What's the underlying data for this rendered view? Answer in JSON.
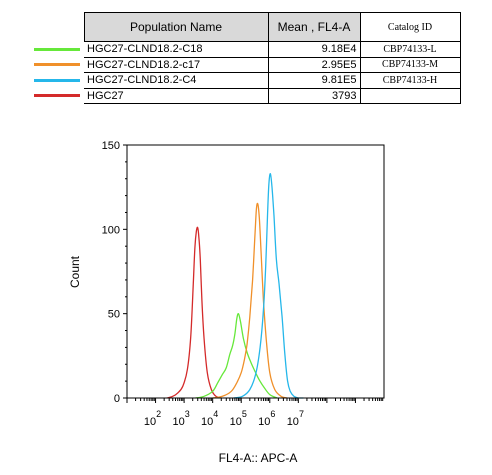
{
  "table": {
    "headers": {
      "population": "Population Name",
      "mean": "Mean , FL4-A",
      "catalog": "Catalog ID"
    },
    "rows": [
      {
        "name": "HGC27-CLND18.2-C18",
        "mean": "9.18E4",
        "catalog": "CBP74133-L",
        "color": "#66e83a"
      },
      {
        "name": "HGC27-CLND18.2-c17",
        "mean": "2.95E5",
        "catalog": "CBP74133-M",
        "color": "#f0902a"
      },
      {
        "name": "HGC27-CLND18.2-C4",
        "mean": "9.81E5",
        "catalog": "CBP74133-H",
        "color": "#25b7ea"
      },
      {
        "name": "HGC27",
        "mean": "3793",
        "catalog": "",
        "color": "#d42a2a"
      }
    ]
  },
  "chart_data": {
    "type": "line",
    "xlabel": "FL4-A:: APC-A",
    "ylabel": "Count",
    "xscale": "log",
    "xlim": [
      10,
      10000000000
    ],
    "ylim": [
      0,
      150
    ],
    "yticks": [
      0,
      50,
      100,
      150
    ],
    "xticks": [
      {
        "value": 100,
        "base": "10",
        "exp": "2"
      },
      {
        "value": 1000,
        "base": "10",
        "exp": "3"
      },
      {
        "value": 10000,
        "base": "10",
        "exp": "4"
      },
      {
        "value": 100000,
        "base": "10",
        "exp": "5"
      },
      {
        "value": 1000000,
        "base": "10",
        "exp": "6"
      },
      {
        "value": 10000000,
        "base": "10",
        "exp": "7"
      }
    ],
    "series": [
      {
        "name": "HGC27",
        "color": "#d42a2a",
        "x": [
          250,
          400,
          600,
          900,
          1300,
          1700,
          2100,
          2400,
          2700,
          3000,
          3300,
          3700,
          4200,
          5000,
          6500,
          9000,
          13000,
          20000
        ],
        "y": [
          0,
          1,
          3,
          7,
          17,
          36,
          68,
          90,
          99,
          101,
          95,
          82,
          58,
          35,
          15,
          5,
          1,
          0
        ]
      },
      {
        "name": "HGC27-CLND18.2-C18",
        "color": "#66e83a",
        "x": [
          2500,
          5000,
          10000,
          15000,
          22000,
          30000,
          40000,
          50000,
          60000,
          70000,
          80000,
          95000,
          120000,
          160000,
          220000,
          300000,
          420000,
          650000,
          1000000,
          1800000
        ],
        "y": [
          0,
          1,
          4,
          9,
          14,
          18,
          26,
          31,
          38,
          47,
          50,
          45,
          35,
          27,
          21,
          16,
          11,
          6,
          2,
          0
        ]
      },
      {
        "name": "HGC27-CLND18.2-c17",
        "color": "#f0902a",
        "x": [
          10000,
          22000,
          45000,
          70000,
          100000,
          130000,
          160000,
          200000,
          250000,
          300000,
          340000,
          380000,
          430000,
          500000,
          600000,
          750000,
          1000000,
          1500000,
          2500000,
          4000000
        ],
        "y": [
          0,
          1,
          4,
          9,
          15,
          23,
          32,
          48,
          70,
          95,
          112,
          115,
          107,
          85,
          58,
          35,
          15,
          5,
          1,
          0
        ]
      },
      {
        "name": "HGC27-CLND18.2-C4",
        "color": "#25b7ea",
        "x": [
          55000,
          110000,
          200000,
          320000,
          460000,
          600000,
          720000,
          830000,
          930000,
          1050000,
          1200000,
          1400000,
          1700000,
          2100000,
          2700000,
          3400000,
          4200000,
          5200000,
          7000000,
          10000000,
          15000000
        ],
        "y": [
          0,
          1,
          5,
          14,
          30,
          52,
          78,
          108,
          127,
          133,
          125,
          108,
          82,
          68,
          48,
          25,
          10,
          4,
          1,
          0,
          0
        ]
      }
    ]
  }
}
